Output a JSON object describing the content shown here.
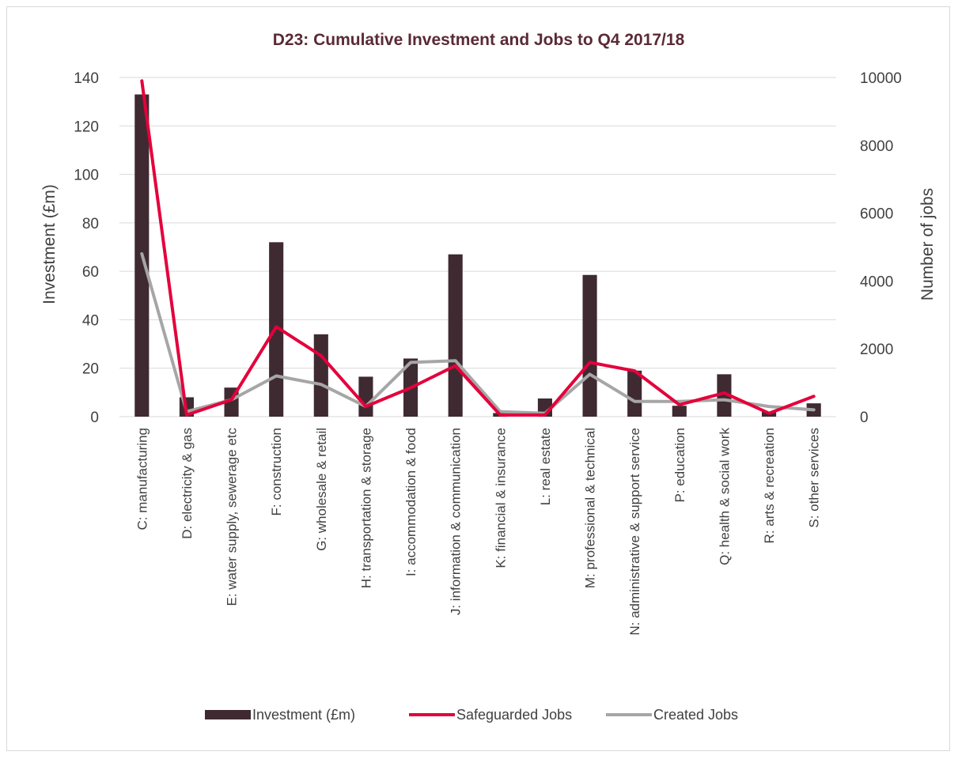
{
  "chart_data": {
    "type": "bar",
    "title": "D23: Cumulative Investment and Jobs to Q4 2017/18",
    "ylabel": "Investment (£m)",
    "y2label": "Number of jobs",
    "ylim": [
      0,
      140
    ],
    "y2lim": [
      0,
      10000
    ],
    "yticks": [
      0,
      20,
      40,
      60,
      80,
      100,
      120,
      140
    ],
    "y2ticks": [
      0,
      2000,
      4000,
      6000,
      8000,
      10000
    ],
    "grid": true,
    "legend_position": "bottom",
    "categories": [
      "C: manufacturing",
      "D: electricity & gas",
      "E: water supply, sewerage etc",
      "F: construction",
      "G: wholesale & retail",
      "H: transportation & storage",
      "I: accommodation & food",
      "J: information & communication",
      "K: financial & insurance",
      "L: real estate",
      "M: professional & technical",
      "N: administrative & support service",
      "P: education",
      "Q: health & social work",
      "R: arts & recreation",
      "S: other services"
    ],
    "series": [
      {
        "name": "Investment (£m)",
        "kind": "bar",
        "axis": "left",
        "color": "#3f2a31",
        "values": [
          133,
          8,
          12,
          72,
          34,
          16.5,
          24,
          67,
          1.5,
          7.5,
          58.5,
          19,
          4.5,
          17.5,
          2,
          5.5
        ]
      },
      {
        "name": "Safeguarded Jobs",
        "kind": "line",
        "axis": "right",
        "color": "#e4003b",
        "values": [
          9900,
          50,
          500,
          2650,
          1800,
          300,
          850,
          1500,
          50,
          50,
          1600,
          1350,
          350,
          700,
          100,
          600
        ]
      },
      {
        "name": "Created Jobs",
        "kind": "line",
        "axis": "right",
        "color": "#a6a6a6",
        "values": [
          4800,
          150,
          500,
          1200,
          950,
          300,
          1600,
          1650,
          150,
          100,
          1250,
          450,
          450,
          500,
          300,
          200
        ]
      }
    ]
  }
}
